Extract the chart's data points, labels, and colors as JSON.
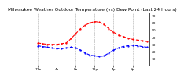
{
  "title": "Milwaukee Weather Outdoor Temperature (vs) Dew Point (Last 24 Hours)",
  "temp_color": "#ff0000",
  "dew_color": "#0000ff",
  "background_color": "#ffffff",
  "grid_color": "#aaaaaa",
  "temp_values": [
    32,
    31,
    30,
    30,
    30,
    31,
    32,
    38,
    45,
    52,
    57,
    60,
    62,
    61,
    58,
    52,
    47,
    43,
    41,
    39,
    37,
    36,
    35,
    34
  ],
  "dew_values": [
    28,
    27,
    26,
    25,
    24,
    24,
    25,
    26,
    25,
    22,
    18,
    15,
    14,
    13,
    14,
    18,
    22,
    25,
    27,
    28,
    29,
    28,
    27,
    26
  ],
  "x_values": [
    0,
    1,
    2,
    3,
    4,
    5,
    6,
    7,
    8,
    9,
    10,
    11,
    12,
    13,
    14,
    15,
    16,
    17,
    18,
    19,
    20,
    21,
    22,
    23
  ],
  "x_tick_positions": [
    0,
    4,
    8,
    12,
    16,
    20
  ],
  "x_tick_labels": [
    "12a",
    "4a",
    "8a",
    "12p",
    "4p",
    "8p"
  ],
  "ylim": [
    0,
    75
  ],
  "yticks": [
    10,
    20,
    30,
    40,
    50,
    60,
    70
  ],
  "ytick_labels": [
    "10",
    "20",
    "30",
    "40",
    "50",
    "60",
    "70"
  ],
  "title_fontsize": 4.2,
  "tick_fontsize": 3.2,
  "line_width": 0.8,
  "marker_size": 1.2
}
